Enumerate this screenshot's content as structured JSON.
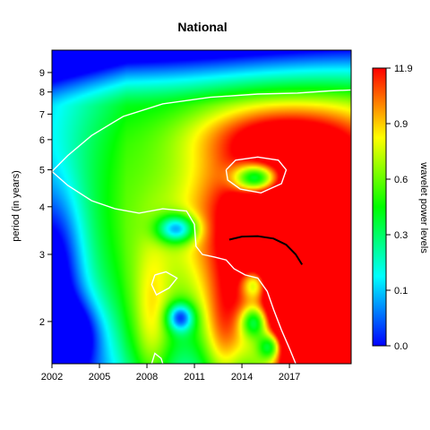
{
  "chart_data": {
    "type": "heatmap",
    "title": "National",
    "xlabel": "",
    "ylabel": "period (in years)",
    "xlim": [
      2002,
      2020.9
    ],
    "ylim": [
      1.55,
      10.3
    ],
    "y_scale": "log",
    "x_ticks": [
      "2002",
      "2005",
      "2008",
      "2011",
      "2014",
      "2017"
    ],
    "y_ticks": [
      "2",
      "3",
      "4",
      "5",
      "6",
      "7",
      "8",
      "9"
    ],
    "colorbar": {
      "label": "wavelet power levels",
      "ticks": [
        "0.0",
        "0.1",
        "0.3",
        "0.6",
        "0.9",
        "11.9"
      ],
      "colors": [
        "#0000ff",
        "#00ffff",
        "#00ff00",
        "#ffff00",
        "#ff0000"
      ]
    },
    "features": [
      {
        "kind": "high",
        "x": 2020,
        "y": 2.6,
        "sx": 3.5,
        "sy": 0.55,
        "a": 0.95
      },
      {
        "kind": "high",
        "x": 2018.5,
        "y": 1.7,
        "sx": 1.6,
        "sy": 0.3,
        "a": 0.8
      },
      {
        "kind": "high",
        "x": 2016.5,
        "y": 6.2,
        "sx": 4.0,
        "sy": 0.13,
        "a": 0.3
      },
      {
        "kind": "high",
        "x": 2014.8,
        "y": 3.6,
        "sx": 3.0,
        "sy": 0.4,
        "a": 0.5
      },
      {
        "kind": "high",
        "x": 2008.3,
        "y": 1.9,
        "sx": 0.9,
        "sy": 0.35,
        "a": 0.3
      },
      {
        "kind": "high",
        "x": 2012.8,
        "y": 1.8,
        "sx": 0.9,
        "sy": 0.25,
        "a": 0.3
      },
      {
        "kind": "low",
        "x": 2014.9,
        "y": 4.75,
        "sx": 1.0,
        "sy": 0.06,
        "a": 0.7
      },
      {
        "kind": "low",
        "x": 2009.9,
        "y": 3.5,
        "sx": 0.9,
        "sy": 0.06,
        "a": 0.55
      },
      {
        "kind": "low",
        "x": 2010.1,
        "y": 2.05,
        "sx": 0.6,
        "sy": 0.06,
        "a": 0.5
      },
      {
        "kind": "low",
        "x": 2014.8,
        "y": 2.5,
        "sx": 0.6,
        "sy": 0.07,
        "a": 0.45
      },
      {
        "kind": "low",
        "x": 2014.8,
        "y": 2.0,
        "sx": 0.6,
        "sy": 0.07,
        "a": 0.5
      },
      {
        "kind": "low",
        "x": 2015.8,
        "y": 1.72,
        "sx": 0.55,
        "sy": 0.06,
        "a": 0.5
      },
      {
        "kind": "low",
        "x": 2002.2,
        "y": 2.8,
        "sx": 1.3,
        "sy": 0.35,
        "a": 0.35
      },
      {
        "kind": "low",
        "x": 2003.5,
        "y": 1.85,
        "sx": 1.2,
        "sy": 0.15,
        "a": 0.3
      }
    ],
    "significance_contours": [
      [
        [
          2002,
          4.95
        ],
        [
          2003,
          4.55
        ],
        [
          2004.5,
          4.15
        ],
        [
          2006,
          3.95
        ],
        [
          2007.5,
          3.85
        ],
        [
          2009,
          3.95
        ],
        [
          2010.5,
          3.9
        ],
        [
          2011,
          3.6
        ],
        [
          2011.1,
          3.15
        ],
        [
          2011.5,
          3.0
        ],
        [
          2012.3,
          2.95
        ],
        [
          2013,
          2.9
        ],
        [
          2013.5,
          2.75
        ],
        [
          2014.2,
          2.65
        ],
        [
          2015.0,
          2.6
        ],
        [
          2015.6,
          2.4
        ],
        [
          2016.0,
          2.15
        ],
        [
          2016.5,
          1.9
        ],
        [
          2017.0,
          1.7
        ],
        [
          2017.4,
          1.55
        ]
      ],
      [
        [
          2002,
          4.95
        ],
        [
          2003,
          5.45
        ],
        [
          2004.5,
          6.15
        ],
        [
          2006.5,
          6.9
        ],
        [
          2009,
          7.45
        ],
        [
          2012,
          7.75
        ],
        [
          2015,
          7.9
        ],
        [
          2017.5,
          7.95
        ],
        [
          2019.5,
          8.05
        ],
        [
          2020.9,
          8.1
        ]
      ],
      [
        [
          2013,
          5.0
        ],
        [
          2013.6,
          5.3
        ],
        [
          2015,
          5.4
        ],
        [
          2016.3,
          5.3
        ],
        [
          2016.8,
          5.0
        ],
        [
          2016.5,
          4.6
        ],
        [
          2015.2,
          4.35
        ],
        [
          2013.9,
          4.45
        ],
        [
          2013.1,
          4.7
        ],
        [
          2013,
          5.0
        ]
      ],
      [
        [
          2008.5,
          2.65
        ],
        [
          2009.2,
          2.7
        ],
        [
          2009.9,
          2.6
        ],
        [
          2009.4,
          2.45
        ],
        [
          2008.6,
          2.35
        ],
        [
          2008.3,
          2.5
        ],
        [
          2008.5,
          2.65
        ]
      ],
      [
        [
          2008.3,
          1.55
        ],
        [
          2008.5,
          1.65
        ],
        [
          2008.9,
          1.6
        ],
        [
          2009.0,
          1.55
        ]
      ]
    ],
    "ridge": [
      [
        2013.2,
        3.28
      ],
      [
        2014,
        3.34
      ],
      [
        2015,
        3.35
      ],
      [
        2016,
        3.3
      ],
      [
        2016.8,
        3.18
      ],
      [
        2017.4,
        3.0
      ],
      [
        2017.8,
        2.82
      ]
    ]
  }
}
